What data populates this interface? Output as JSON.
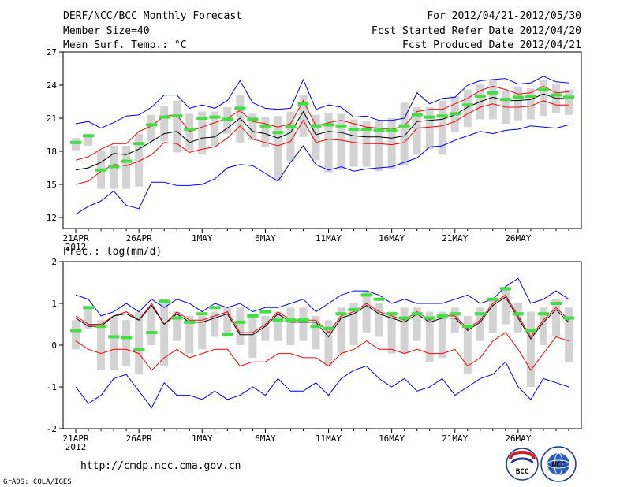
{
  "header": {
    "title": "DERF/NCC/BCC Monthly Forecast",
    "member_size": "Member Size=40",
    "variable": "Mean Surf. Temp.: °C",
    "period": "For 2012/04/21-2012/05/30",
    "fcst_started": "Fcst Started Refer Date 2012/04/20",
    "fcst_produced": "Fcst Produced Date 2012/04/21"
  },
  "footer": {
    "url": "http://cmdp.ncc.cma.gov.cn",
    "credit": "GrADS: COLA/IGES",
    "logo_bcc": "BCC",
    "logo_ncc": "NCC"
  },
  "colors": {
    "envelope": "#0000ff",
    "spread": "#ff0000",
    "mean": "#000000",
    "box": "#d3d3d3",
    "median": "#40e040"
  },
  "chart_data": [
    {
      "name": "temperature",
      "type": "line",
      "title": "Mean Surf. Temp.: °C",
      "ylim": [
        11,
        27
      ],
      "yticks": [
        12,
        15,
        18,
        21,
        24,
        27
      ],
      "xticks": [
        {
          "day": 1,
          "label": "21APR",
          "sub": "2012"
        },
        {
          "day": 6,
          "label": "26APR",
          "sub": ""
        },
        {
          "day": 11,
          "label": "1MAY",
          "sub": ""
        },
        {
          "day": 16,
          "label": "6MAY",
          "sub": ""
        },
        {
          "day": 21,
          "label": "11MAY",
          "sub": ""
        },
        {
          "day": 26,
          "label": "16MAY",
          "sub": ""
        },
        {
          "day": 31,
          "label": "21MAY",
          "sub": ""
        },
        {
          "day": 36,
          "label": "26MAY",
          "sub": ""
        }
      ],
      "days": [
        1,
        2,
        3,
        4,
        5,
        6,
        7,
        8,
        9,
        10,
        11,
        12,
        13,
        14,
        15,
        16,
        17,
        18,
        19,
        20,
        21,
        22,
        23,
        24,
        25,
        26,
        27,
        28,
        29,
        30,
        31,
        32,
        33,
        34,
        35,
        36,
        37,
        38,
        39,
        40
      ],
      "series": [
        {
          "name": "max",
          "color": "#0000ff",
          "values": [
            20.5,
            20.7,
            20.1,
            20.6,
            21.2,
            21.3,
            22.0,
            23.1,
            23.1,
            21.9,
            22.2,
            21.9,
            22.6,
            24.4,
            22.4,
            21.9,
            21.8,
            21.9,
            24.5,
            21.8,
            22.2,
            22.0,
            21.1,
            21.2,
            20.8,
            20.8,
            21.0,
            23.3,
            22.3,
            22.8,
            22.9,
            24.0,
            24.4,
            24.5,
            24.6,
            24.1,
            24.2,
            24.8,
            24.3,
            24.2
          ]
        },
        {
          "name": "spread_upper",
          "color": "#ff0000",
          "values": [
            17.2,
            17.5,
            18.2,
            18.7,
            18.7,
            19.8,
            20.3,
            21.2,
            21.3,
            19.8,
            20.2,
            20.6,
            21.0,
            21.7,
            20.7,
            20.5,
            20.2,
            20.5,
            22.6,
            20.3,
            20.6,
            20.8,
            20.5,
            20.2,
            20.1,
            20.0,
            20.3,
            21.6,
            21.8,
            21.8,
            22.3,
            22.8,
            23.5,
            23.9,
            23.6,
            23.2,
            23.3,
            23.9,
            23.3,
            23.4
          ]
        },
        {
          "name": "mean",
          "color": "#000000",
          "values": [
            16.3,
            16.5,
            17.0,
            17.8,
            17.7,
            18.2,
            18.9,
            19.6,
            19.8,
            18.8,
            19.2,
            19.3,
            20.1,
            21.0,
            19.8,
            19.6,
            19.2,
            19.7,
            21.6,
            19.5,
            19.8,
            19.7,
            19.4,
            19.3,
            19.3,
            19.2,
            19.4,
            20.7,
            20.8,
            20.9,
            21.3,
            22.0,
            22.5,
            22.9,
            22.6,
            22.6,
            22.7,
            23.2,
            22.8,
            22.8
          ]
        },
        {
          "name": "spread_lower",
          "color": "#ff0000",
          "values": [
            15.0,
            15.3,
            16.2,
            16.8,
            16.7,
            17.1,
            17.7,
            18.8,
            18.7,
            17.9,
            18.2,
            18.4,
            19.2,
            20.3,
            19.1,
            18.8,
            18.5,
            18.9,
            20.8,
            18.8,
            19.1,
            19.0,
            18.8,
            18.7,
            18.7,
            18.6,
            18.8,
            20.1,
            20.2,
            20.3,
            20.7,
            21.4,
            22.0,
            22.3,
            22.0,
            22.0,
            22.1,
            22.6,
            22.2,
            22.2
          ]
        },
        {
          "name": "min",
          "color": "#0000ff",
          "values": [
            12.3,
            13.0,
            13.5,
            14.4,
            13.1,
            12.8,
            15.2,
            15.2,
            14.9,
            14.9,
            15.0,
            15.5,
            16.5,
            16.8,
            16.7,
            16.0,
            15.3,
            17.0,
            18.5,
            16.8,
            16.3,
            16.6,
            16.2,
            16.4,
            16.5,
            16.6,
            17.0,
            17.4,
            18.4,
            18.5,
            19.0,
            19.4,
            19.8,
            19.6,
            19.9,
            20.0,
            20.3,
            20.2,
            20.1,
            20.4
          ]
        }
      ],
      "box_low": [
        18.1,
        18.5,
        14.6,
        14.6,
        14.6,
        14.8,
        18.9,
        18.9,
        17.9,
        18.1,
        17.7,
        18.5,
        19.6,
        18.8,
        19.0,
        18.4,
        15.3,
        17.1,
        19.3,
        17.2,
        16.1,
        16.3,
        16.6,
        16.6,
        16.2,
        16.4,
        16.7,
        17.7,
        18.2,
        17.7,
        19.7,
        20.2,
        20.9,
        20.9,
        20.5,
        20.8,
        20.9,
        21.2,
        21.5,
        21.3
      ],
      "box_high": [
        19.2,
        19.6,
        18.0,
        18.5,
        18.5,
        19.6,
        21.3,
        22.1,
        22.6,
        21.4,
        21.6,
        21.6,
        22.0,
        23.1,
        21.4,
        21.1,
        21.2,
        21.6,
        23.1,
        21.3,
        21.5,
        21.4,
        20.9,
        20.7,
        20.8,
        21.0,
        22.4,
        22.0,
        22.0,
        22.6,
        23.0,
        23.6,
        24.1,
        24.5,
        23.5,
        23.8,
        23.7,
        24.5,
        24.1,
        23.6
      ],
      "median": [
        18.8,
        19.4,
        16.3,
        16.6,
        17.1,
        18.7,
        20.4,
        21.1,
        21.2,
        20.0,
        21.0,
        21.1,
        20.9,
        21.9,
        20.9,
        20.3,
        19.7,
        20.2,
        22.3,
        20.3,
        20.4,
        20.3,
        20.0,
        20.0,
        19.9,
        19.9,
        20.3,
        21.3,
        21.1,
        21.2,
        21.4,
        22.2,
        23.0,
        23.3,
        22.7,
        22.9,
        23.0,
        23.6,
        23.1,
        22.9
      ]
    },
    {
      "name": "precipitation",
      "type": "line",
      "title": "Prec.: log(mm/d)",
      "ylim": [
        -2,
        2
      ],
      "yticks": [
        -2,
        -1,
        0,
        1,
        2
      ],
      "xticks": [
        {
          "day": 1,
          "label": "21APR",
          "sub": "2012"
        },
        {
          "day": 6,
          "label": "26APR",
          "sub": ""
        },
        {
          "day": 11,
          "label": "1MAY",
          "sub": ""
        },
        {
          "day": 16,
          "label": "6MAY",
          "sub": ""
        },
        {
          "day": 21,
          "label": "11MAY",
          "sub": ""
        },
        {
          "day": 26,
          "label": "16MAY",
          "sub": ""
        },
        {
          "day": 31,
          "label": "21MAY",
          "sub": ""
        },
        {
          "day": 36,
          "label": "26MAY",
          "sub": ""
        }
      ],
      "days": [
        1,
        2,
        3,
        4,
        5,
        6,
        7,
        8,
        9,
        10,
        11,
        12,
        13,
        14,
        15,
        16,
        17,
        18,
        19,
        20,
        21,
        22,
        23,
        24,
        25,
        26,
        27,
        28,
        29,
        30,
        31,
        32,
        33,
        34,
        35,
        36,
        37,
        38,
        39,
        40
      ],
      "series": [
        {
          "name": "max",
          "color": "#0000ff",
          "values": [
            1.2,
            1.1,
            0.7,
            0.8,
            1.0,
            0.8,
            1.1,
            0.9,
            1.1,
            1.0,
            0.8,
            1.0,
            0.9,
            1.0,
            0.8,
            0.9,
            0.9,
            1.0,
            1.1,
            0.8,
            1.0,
            1.2,
            1.3,
            1.3,
            1.2,
            1.0,
            1.1,
            1.0,
            1.0,
            1.0,
            1.1,
            1.2,
            1.0,
            1.1,
            1.4,
            1.6,
            1.0,
            1.1,
            1.3,
            1.1
          ]
        },
        {
          "name": "spread_upper",
          "color": "#ff0000",
          "values": [
            0.7,
            0.5,
            0.5,
            0.7,
            0.8,
            0.6,
            1.0,
            0.5,
            0.8,
            0.6,
            0.6,
            0.7,
            0.8,
            0.3,
            0.3,
            0.5,
            0.8,
            0.6,
            0.6,
            0.6,
            0.3,
            0.7,
            0.8,
            1.0,
            0.8,
            0.7,
            0.6,
            0.8,
            0.6,
            0.7,
            0.7,
            0.4,
            0.6,
            1.0,
            1.2,
            0.7,
            0.2,
            0.6,
            0.9,
            0.6
          ]
        },
        {
          "name": "mean",
          "color": "#000000",
          "values": [
            0.65,
            0.45,
            0.45,
            0.7,
            0.75,
            0.6,
            0.95,
            0.5,
            0.75,
            0.55,
            0.55,
            0.65,
            0.75,
            0.25,
            0.25,
            0.45,
            0.75,
            0.55,
            0.55,
            0.55,
            0.2,
            0.65,
            0.75,
            0.95,
            0.75,
            0.65,
            0.55,
            0.75,
            0.55,
            0.65,
            0.65,
            0.35,
            0.55,
            0.95,
            1.15,
            0.65,
            0.15,
            0.55,
            0.85,
            0.55
          ]
        },
        {
          "name": "spread_lower",
          "color": "#ff0000",
          "values": [
            0.1,
            -0.1,
            -0.2,
            -0.1,
            -0.1,
            -0.2,
            -0.6,
            -0.3,
            -0.1,
            -0.3,
            -0.2,
            -0.1,
            -0.1,
            -0.5,
            -0.4,
            -0.4,
            -0.2,
            -0.2,
            -0.3,
            -0.3,
            -0.5,
            -0.2,
            -0.1,
            0.1,
            -0.1,
            -0.1,
            -0.2,
            -0.1,
            -0.2,
            -0.2,
            -0.1,
            -0.5,
            -0.3,
            0.1,
            0.3,
            -0.1,
            -0.6,
            -0.2,
            0.2,
            0.1
          ]
        },
        {
          "name": "min",
          "color": "#0000ff",
          "values": [
            -1.0,
            -1.4,
            -1.2,
            -0.8,
            -0.7,
            -1.1,
            -1.5,
            -0.9,
            -1.2,
            -1.2,
            -1.3,
            -1.1,
            -1.3,
            -1.2,
            -1.0,
            -1.2,
            -0.8,
            -1.1,
            -1.1,
            -0.9,
            -1.2,
            -0.8,
            -0.6,
            -0.5,
            -0.8,
            -1.0,
            -0.8,
            -1.1,
            -1.0,
            -0.8,
            -1.2,
            -1.0,
            -0.8,
            -0.7,
            -0.4,
            -1.0,
            -1.3,
            -0.8,
            -0.9,
            -1.0
          ]
        }
      ],
      "box_low": [
        -0.1,
        0.4,
        -0.6,
        -0.6,
        -0.5,
        -0.7,
        0.0,
        -0.5,
        0.1,
        -0.2,
        -0.1,
        0.2,
        0.3,
        0.0,
        -0.3,
        0.1,
        0.1,
        0.0,
        0.1,
        -0.1,
        -0.5,
        -0.2,
        0.0,
        0.3,
        0.2,
        -0.2,
        -0.2,
        0.1,
        -0.4,
        -0.3,
        0.3,
        -0.7,
        0.1,
        0.3,
        0.5,
        0.3,
        -1.0,
        0.0,
        0.2,
        -0.4
      ],
      "box_high": [
        0.6,
        0.9,
        0.6,
        0.7,
        0.6,
        0.8,
        0.9,
        1.1,
        0.8,
        0.7,
        0.7,
        0.8,
        0.9,
        0.9,
        0.7,
        0.7,
        0.8,
        0.9,
        0.9,
        0.7,
        0.6,
        0.9,
        1.0,
        1.3,
        1.0,
        0.8,
        0.9,
        0.9,
        0.8,
        0.8,
        0.9,
        0.7,
        0.9,
        1.1,
        1.4,
        1.0,
        0.8,
        0.9,
        1.1,
        0.9
      ],
      "median": [
        0.35,
        0.9,
        0.45,
        0.2,
        0.18,
        -0.1,
        0.3,
        1.05,
        0.65,
        0.55,
        0.75,
        0.9,
        0.25,
        0.55,
        0.7,
        0.8,
        0.6,
        0.6,
        0.6,
        0.45,
        0.4,
        0.75,
        0.85,
        1.2,
        1.1,
        0.75,
        0.65,
        0.75,
        0.65,
        0.7,
        0.75,
        0.45,
        0.75,
        1.1,
        1.35,
        0.75,
        0.35,
        0.75,
        1.0,
        0.65
      ]
    }
  ]
}
